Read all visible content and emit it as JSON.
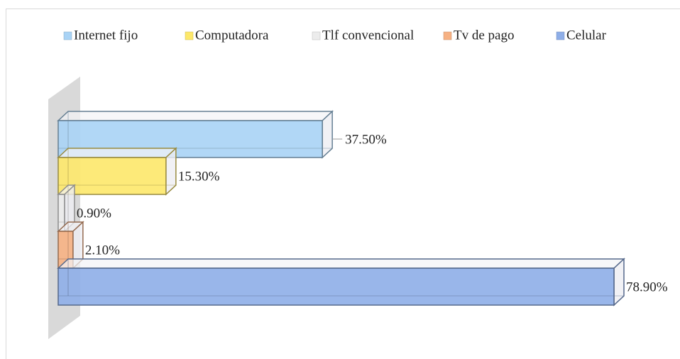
{
  "chart_data": {
    "type": "bar",
    "orientation": "horizontal",
    "series": [
      {
        "name": "Internet fijo",
        "color": "#a9d3f5",
        "values": [
          37.5
        ],
        "value_labels": [
          "37.50%"
        ]
      },
      {
        "name": "Computadora",
        "color": "#fde86a",
        "values": [
          15.3
        ],
        "value_labels": [
          "15.30%"
        ]
      },
      {
        "name": "Tlf convencional",
        "color": "#ececec",
        "values": [
          0.9
        ],
        "value_labels": [
          "0.90%"
        ]
      },
      {
        "name": "Tv de pago",
        "color": "#f6b183",
        "values": [
          2.1
        ],
        "value_labels": [
          "2.10%"
        ]
      },
      {
        "name": "Celular",
        "color": "#8eaee8",
        "values": [
          78.9
        ],
        "value_labels": [
          "78.90%"
        ]
      }
    ],
    "legend": "top"
  }
}
